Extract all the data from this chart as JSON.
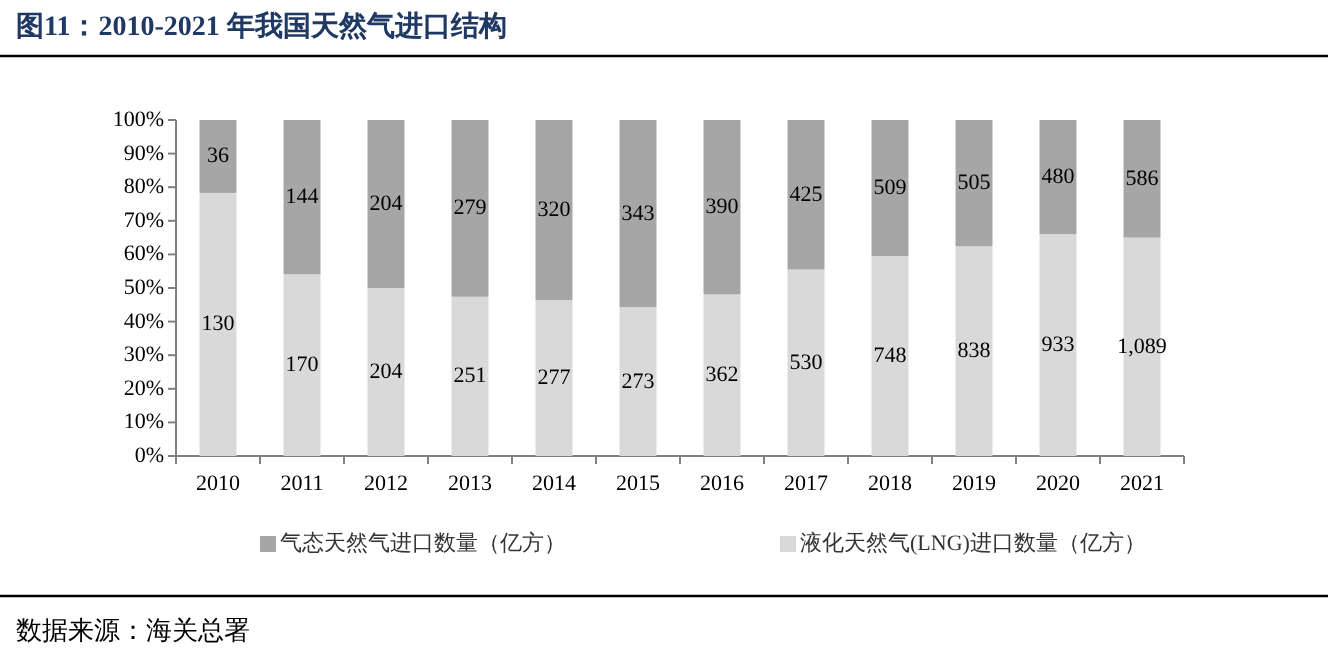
{
  "chart_data": {
    "type": "bar",
    "stacked": true,
    "title": "图11：2010-2021 年我国天然气进口结构",
    "categories": [
      "2010",
      "2011",
      "2012",
      "2013",
      "2014",
      "2015",
      "2016",
      "2017",
      "2018",
      "2019",
      "2020",
      "2021"
    ],
    "series": [
      {
        "name": "液化天然气(LNG)进口数量（亿方）",
        "color": "#d9d9d9",
        "values": [
          78.3,
          54.1,
          50.0,
          47.4,
          46.4,
          44.3,
          48.1,
          55.5,
          59.5,
          62.4,
          66.0,
          65.0
        ]
      },
      {
        "name": "气态天然气进口数量（亿方）",
        "color": "#a6a6a6",
        "values": [
          21.7,
          45.9,
          50.0,
          52.6,
          53.6,
          55.7,
          51.9,
          44.5,
          40.5,
          37.6,
          34.0,
          35.0
        ]
      }
    ],
    "ylim": [
      0,
      100
    ],
    "yticks": [
      {
        "value": 0,
        "label": "0%"
      },
      {
        "value": 10,
        "label": "10%"
      },
      {
        "value": 20,
        "label": "20%"
      },
      {
        "value": 30,
        "label": "30%"
      },
      {
        "value": 40,
        "label": "40%"
      },
      {
        "value": 50,
        "label": "50%"
      },
      {
        "value": 60,
        "label": "60%"
      },
      {
        "value": 70,
        "label": "70%"
      },
      {
        "value": 80,
        "label": "80%"
      },
      {
        "value": 90,
        "label": "90%"
      },
      {
        "value": 100,
        "label": "100%"
      }
    ],
    "legend": "bottom",
    "annotations": [
      "130",
      "170",
      "204",
      "251",
      "277",
      "273",
      "362",
      "530",
      "748",
      "838",
      "933",
      "1,089",
      "36",
      "144",
      "204",
      "279",
      "320",
      "343",
      "390",
      "425",
      "509",
      "505",
      "480",
      "586",
      "数据来源：海关总署"
    ]
  }
}
